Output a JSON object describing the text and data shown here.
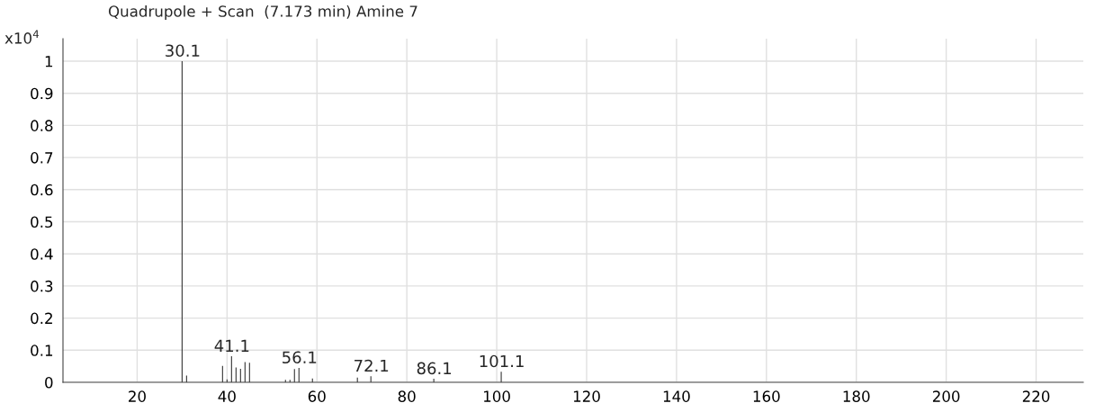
{
  "chart_data": {
    "type": "bar",
    "title": "Quadrupole + Scan  (7.173 min) Amine 7",
    "ylabel": "x10$^{4}$",
    "x": [
      30,
      31,
      39,
      40,
      41,
      42,
      43,
      44,
      45,
      53,
      54,
      55,
      56,
      59,
      69,
      72,
      86,
      101
    ],
    "values": [
      1.0,
      0.021,
      0.051,
      0.009,
      0.081,
      0.046,
      0.042,
      0.063,
      0.061,
      0.008,
      0.008,
      0.041,
      0.045,
      0.012,
      0.015,
      0.019,
      0.011,
      0.033
    ],
    "color": "#333333",
    "annotations": [
      {
        "text": "30.1",
        "x": 30.1,
        "y": 1.0
      },
      {
        "text": "41.1",
        "x": 41.1,
        "y": 0.081
      },
      {
        "text": "56.1",
        "x": 56.1,
        "y": 0.045
      },
      {
        "text": "72.1",
        "x": 72.1,
        "y": 0.019
      },
      {
        "text": "86.1",
        "x": 86.1,
        "y": 0.011
      },
      {
        "text": "101.1",
        "x": 101.1,
        "y": 0.033
      }
    ],
    "xlim": [
      3.5,
      230.5
    ],
    "xticks": [
      20,
      40,
      60,
      80,
      100,
      120,
      140,
      160,
      180,
      200,
      220
    ],
    "ylim": [
      0,
      1.07
    ],
    "yticks": [
      0,
      0.1,
      0.2,
      0.3,
      0.4,
      0.5,
      0.6,
      0.7,
      0.8,
      0.9,
      1
    ],
    "grid": true
  }
}
